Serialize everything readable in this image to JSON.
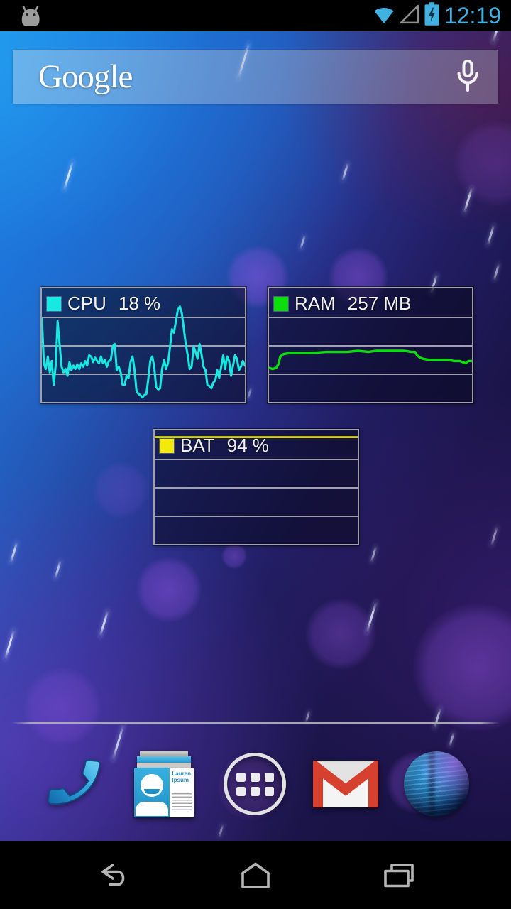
{
  "status_bar": {
    "time": "12:19",
    "accent_color": "#41b1e1",
    "icons": [
      "android-notification",
      "wifi-full",
      "signal-empty",
      "battery-charging"
    ]
  },
  "search_bar": {
    "logo": "Google",
    "mic_icon": "microphone"
  },
  "widgets": {
    "cpu": {
      "label": "CPU",
      "value": "18 %",
      "color": "#17e8e2"
    },
    "ram": {
      "label": "RAM",
      "value": "257 MB",
      "color": "#0ddd0d"
    },
    "bat": {
      "label": "BAT",
      "value": "94 %",
      "color": "#f2ea0a"
    }
  },
  "chart_data": [
    {
      "type": "line",
      "id": "cpu",
      "title": "CPU 18 %",
      "legend": "CPU",
      "current_value": "18 %",
      "color": "#17e8e2",
      "y_scale": "percent_of_chart_height_0_100",
      "grid": "3 horizontal gridlines at 25/50/75%",
      "values": [
        74,
        34,
        29,
        40,
        26,
        36,
        15,
        32,
        71,
        51,
        31,
        26,
        29,
        23,
        35,
        28,
        32,
        29,
        33,
        29,
        34,
        31,
        36,
        32,
        41,
        40,
        35,
        39,
        36,
        34,
        40,
        34,
        37,
        31,
        36,
        37,
        49,
        51,
        28,
        31,
        26,
        15,
        15,
        23,
        21,
        35,
        40,
        29,
        10,
        7,
        6,
        4,
        6,
        7,
        20,
        36,
        40,
        31,
        13,
        11,
        12,
        29,
        37,
        29,
        34,
        48,
        64,
        61,
        71,
        81,
        84,
        78,
        65,
        51,
        41,
        29,
        31,
        49,
        44,
        38,
        51,
        42,
        31,
        28,
        15,
        14,
        12,
        17,
        19,
        28,
        21,
        31,
        41,
        29,
        40,
        36,
        23,
        32,
        41,
        38,
        28,
        31,
        36,
        32
      ]
    },
    {
      "type": "line",
      "id": "ram",
      "title": "RAM 257 MB",
      "legend": "RAM",
      "current_value": "257 MB",
      "color": "#0ddd0d",
      "y_scale": "percent_of_chart_height_0_100",
      "grid": "3 horizontal gridlines at 25/50/75%",
      "points": [
        [
          0,
          30
        ],
        [
          5,
          29
        ],
        [
          10,
          30
        ],
        [
          13,
          33
        ],
        [
          16,
          40
        ],
        [
          20,
          42
        ],
        [
          28,
          43
        ],
        [
          45,
          43
        ],
        [
          60,
          43
        ],
        [
          80,
          44
        ],
        [
          95,
          44
        ],
        [
          110,
          44
        ],
        [
          125,
          45
        ],
        [
          140,
          44
        ],
        [
          150,
          45
        ],
        [
          165,
          45
        ],
        [
          180,
          45
        ],
        [
          190,
          45
        ],
        [
          200,
          44
        ],
        [
          205,
          44
        ],
        [
          208,
          41
        ],
        [
          212,
          39
        ],
        [
          216,
          38
        ],
        [
          225,
          37
        ],
        [
          240,
          37
        ],
        [
          252,
          37
        ],
        [
          260,
          36
        ],
        [
          268,
          36
        ],
        [
          272,
          35
        ],
        [
          276,
          34
        ],
        [
          280,
          36
        ],
        [
          285,
          36
        ]
      ]
    },
    {
      "type": "line",
      "id": "bat",
      "title": "BAT 94 %",
      "legend": "BAT",
      "current_value": "94 %",
      "color": "#f2ea0a",
      "y_scale": "percent_of_chart_height_0_100",
      "grid": "3 horizontal gridlines at 25/50/75%",
      "points": [
        [
          0,
          94
        ],
        [
          285,
          94
        ]
      ]
    }
  ],
  "dock": {
    "contacts_card_text": "Lauren Ipsum",
    "items": [
      {
        "name": "phone"
      },
      {
        "name": "people"
      },
      {
        "name": "all-apps"
      },
      {
        "name": "gmail"
      },
      {
        "name": "browser"
      }
    ]
  },
  "nav_bar": {
    "items": [
      "back",
      "home",
      "recents"
    ]
  }
}
